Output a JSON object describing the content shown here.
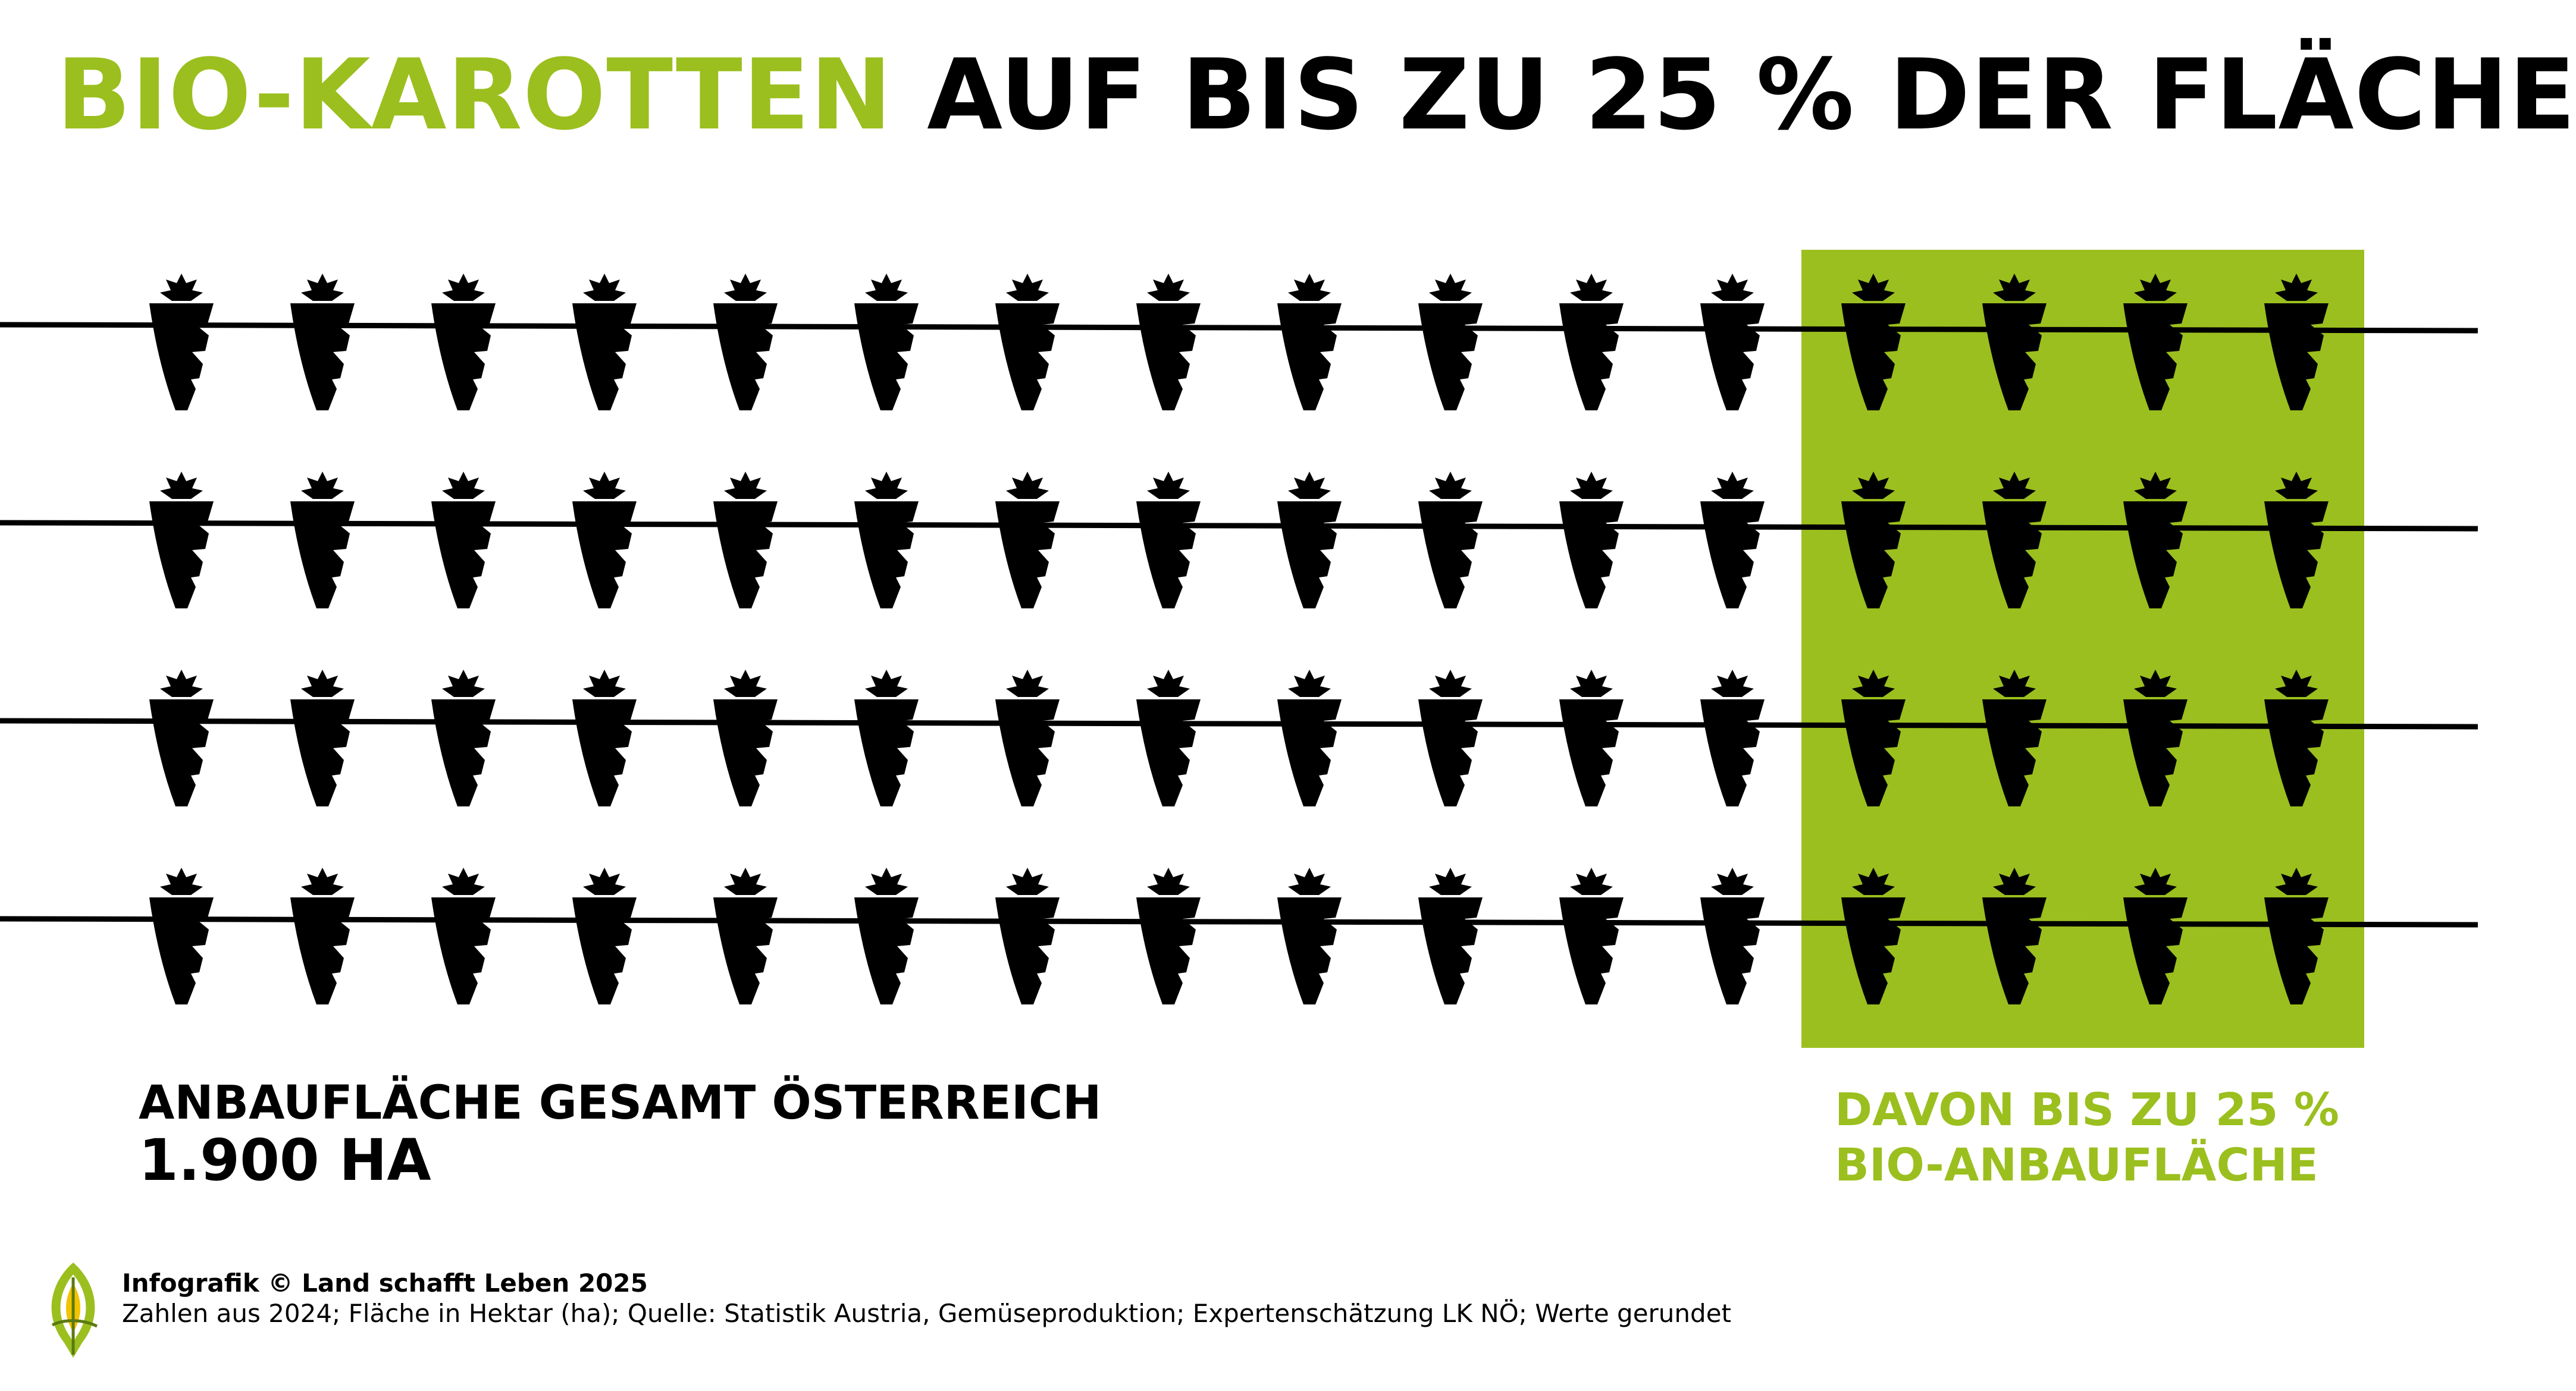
{
  "headline": {
    "accent": "BIO-KAROTTEN",
    "rest": "AUF BIS ZU 25 % DER FLÄCHE"
  },
  "chart_data": {
    "type": "pictogram",
    "title": "BIO-KAROTTEN AUF BIS ZU 25 % DER FLÄCHE",
    "total_label": "ANBAUFLÄCHE GESAMT ÖSTERREICH",
    "total_value": "1.900 HA",
    "share_label_line1": "DAVON BIS ZU 25 %",
    "share_label_line2": "BIO-ANBAUFLÄCHE",
    "total_area_ha": 1900,
    "bio_share_percent": 25,
    "grid": {
      "rows": 4,
      "columns": 16,
      "highlighted_columns": 4
    },
    "icon": "carrot-icon",
    "colors": {
      "highlight": "#9bbf1e",
      "icon": "#000000",
      "background": "#ffffff"
    }
  },
  "footer": {
    "credit": "Infografik © Land schafft Leben 2025",
    "note": "Zahlen aus 2024; Fläche in Hektar (ha); Quelle: Statistik Austria, Gemüseproduktion; Expertenschätzung LK NÖ; Werte gerundet",
    "logo_icon": "leaf-logo-icon"
  }
}
